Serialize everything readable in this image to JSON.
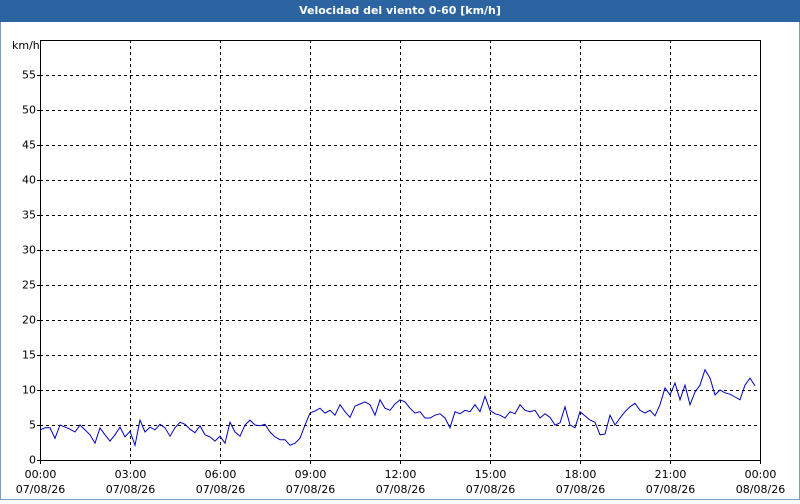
{
  "chart_data": {
    "type": "line",
    "title": "Velocidad del viento 0-60 [km/h]",
    "y_unit": "km/h",
    "xlim": [
      0,
      1440
    ],
    "ylim": [
      0,
      60
    ],
    "yticks": [
      0,
      5,
      10,
      15,
      20,
      25,
      30,
      35,
      40,
      45,
      50,
      55
    ],
    "xticks": [
      {
        "value": 0,
        "label": [
          "00:00",
          "07/08/26"
        ]
      },
      {
        "value": 180,
        "label": [
          "03:00",
          "07/08/26"
        ]
      },
      {
        "value": 360,
        "label": [
          "06:00",
          "07/08/26"
        ]
      },
      {
        "value": 540,
        "label": [
          "09:00",
          "07/08/26"
        ]
      },
      {
        "value": 720,
        "label": [
          "12:00",
          "07/08/26"
        ]
      },
      {
        "value": 900,
        "label": [
          "15:00",
          "07/08/26"
        ]
      },
      {
        "value": 1080,
        "label": [
          "18:00",
          "07/08/26"
        ]
      },
      {
        "value": 1260,
        "label": [
          "21:00",
          "07/08/26"
        ]
      },
      {
        "value": 1440,
        "label": [
          "00:00",
          "08/08/26"
        ]
      }
    ],
    "grid": true,
    "x": [
      0,
      10,
      20,
      30,
      40,
      50,
      60,
      70,
      80,
      90,
      100,
      110,
      120,
      130,
      140,
      150,
      160,
      170,
      180,
      190,
      200,
      210,
      220,
      230,
      240,
      250,
      260,
      270,
      280,
      290,
      300,
      310,
      320,
      330,
      340,
      350,
      360,
      370,
      380,
      390,
      400,
      410,
      420,
      430,
      440,
      450,
      460,
      470,
      480,
      490,
      500,
      510,
      520,
      530,
      540,
      550,
      560,
      570,
      580,
      590,
      600,
      610,
      620,
      630,
      640,
      650,
      660,
      670,
      680,
      690,
      700,
      710,
      720,
      730,
      740,
      750,
      760,
      770,
      780,
      790,
      800,
      810,
      820,
      830,
      840,
      850,
      860,
      870,
      880,
      890,
      900,
      910,
      920,
      930,
      940,
      950,
      960,
      970,
      980,
      990,
      1000,
      1010,
      1020,
      1030,
      1040,
      1050,
      1060,
      1070,
      1080,
      1090,
      1100,
      1110,
      1120,
      1130,
      1140,
      1150,
      1160,
      1170,
      1180,
      1190,
      1200,
      1210,
      1220,
      1230,
      1240,
      1250,
      1260,
      1270,
      1280,
      1290,
      1300,
      1310,
      1320,
      1330,
      1340,
      1350,
      1360,
      1370,
      1380,
      1390,
      1400,
      1410,
      1420,
      1430
    ],
    "series": [
      {
        "color": "#0000c0",
        "values": [
          4.3,
          4.6,
          4.6,
          3.1,
          5.0,
          4.7,
          4.4,
          4.0,
          5.0,
          4.3,
          3.6,
          2.4,
          4.6,
          3.6,
          2.7,
          3.6,
          4.7,
          3.3,
          4.1,
          2.1,
          5.7,
          4.0,
          4.7,
          4.3,
          5.1,
          4.6,
          3.4,
          4.6,
          5.4,
          5.1,
          4.4,
          3.9,
          4.9,
          3.6,
          3.3,
          2.7,
          3.4,
          2.4,
          5.4,
          4.0,
          3.4,
          5.0,
          5.7,
          5.0,
          4.9,
          5.1,
          4.0,
          3.3,
          2.9,
          2.9,
          2.1,
          2.4,
          3.1,
          5.0,
          6.7,
          7.0,
          7.4,
          6.7,
          7.1,
          6.4,
          7.9,
          6.9,
          6.1,
          7.7,
          8.0,
          8.3,
          7.9,
          6.4,
          8.6,
          7.4,
          7.1,
          8.0,
          8.6,
          8.3,
          7.4,
          6.7,
          6.9,
          6.0,
          6.0,
          6.4,
          6.6,
          6.0,
          4.6,
          6.9,
          6.6,
          7.1,
          6.9,
          7.9,
          6.9,
          9.1,
          7.1,
          6.6,
          6.4,
          6.0,
          6.9,
          6.6,
          7.9,
          7.1,
          6.9,
          7.1,
          6.0,
          6.6,
          6.1,
          5.0,
          5.3,
          7.6,
          5.0,
          4.6,
          6.9,
          6.3,
          5.7,
          5.4,
          3.6,
          3.7,
          6.4,
          5.0,
          6.0,
          6.9,
          7.6,
          8.1,
          7.1,
          6.7,
          7.1,
          6.3,
          7.9,
          10.3,
          9.3,
          11.0,
          8.6,
          10.7,
          7.9,
          9.7,
          10.7,
          12.9,
          11.7,
          9.3,
          10.0,
          9.6,
          9.4,
          9.0,
          8.6,
          10.7,
          11.7,
          10.6
        ]
      }
    ]
  }
}
